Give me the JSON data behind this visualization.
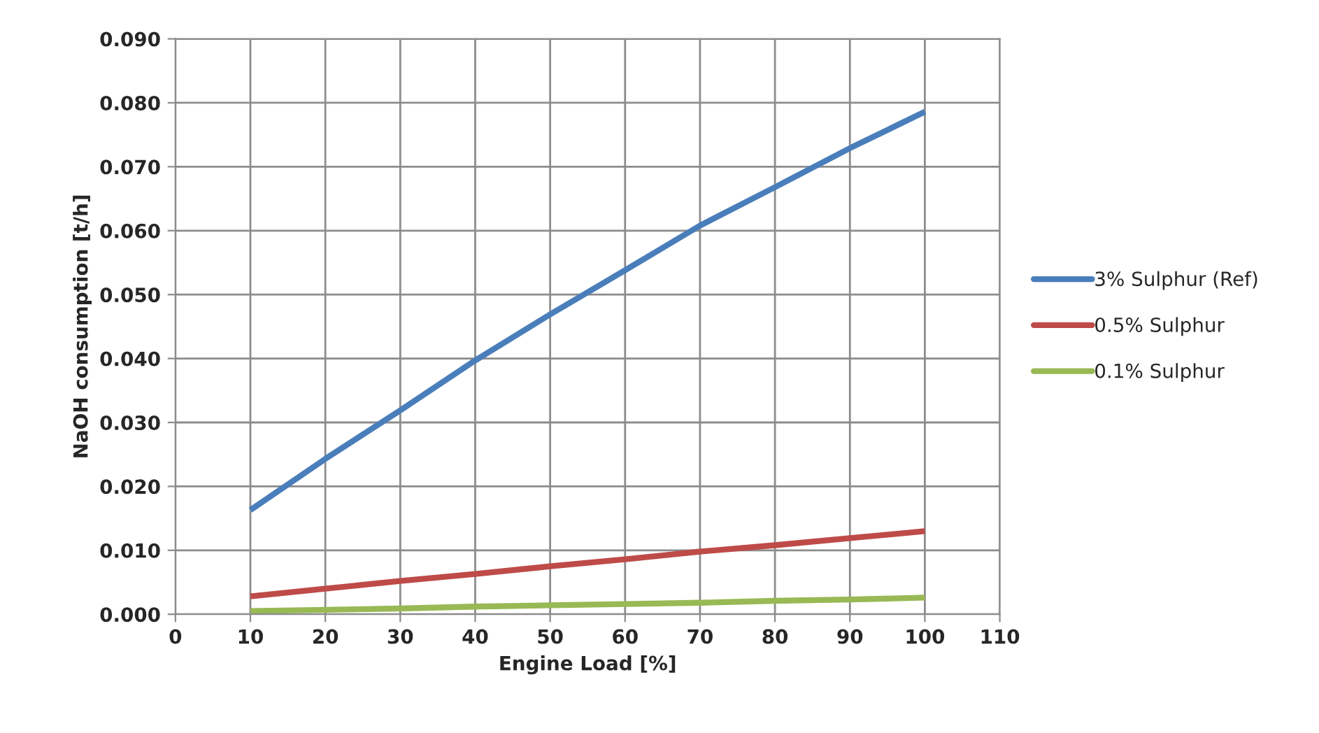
{
  "chart_data": {
    "type": "line",
    "xlabel": "Engine Load [%]",
    "ylabel": "NaOH consumption [t/h]",
    "x": [
      10,
      20,
      30,
      40,
      50,
      60,
      70,
      80,
      90,
      100
    ],
    "series": [
      {
        "name": "3% Sulphur (Ref)",
        "color": "#4a7ebb",
        "values": [
          0.0163,
          0.0243,
          0.0319,
          0.0397,
          0.0469,
          0.0538,
          0.0608,
          0.0668,
          0.0729,
          0.0786
        ]
      },
      {
        "name": "0.5% Sulphur",
        "color": "#be4b48",
        "values": [
          0.0028,
          0.004,
          0.0052,
          0.0063,
          0.0075,
          0.0086,
          0.0098,
          0.0108,
          0.0119,
          0.013
        ]
      },
      {
        "name": "0.1% Sulphur",
        "color": "#98b954",
        "values": [
          0.0005,
          0.0007,
          0.0009,
          0.0012,
          0.0014,
          0.0016,
          0.0018,
          0.0021,
          0.0023,
          0.0026
        ]
      }
    ],
    "xlim": [
      0,
      110
    ],
    "xticks": [
      0,
      10,
      20,
      30,
      40,
      50,
      60,
      70,
      80,
      90,
      100,
      110
    ],
    "ylim": [
      0,
      0.09
    ],
    "yticks": [
      {
        "value": 0,
        "label": "0.000"
      },
      {
        "value": 0.01,
        "label": "0.010"
      },
      {
        "value": 0.02,
        "label": "0.020"
      },
      {
        "value": 0.03,
        "label": "0.030"
      },
      {
        "value": 0.04,
        "label": "0.040"
      },
      {
        "value": 0.05,
        "label": "0.050"
      },
      {
        "value": 0.06,
        "label": "0.060"
      },
      {
        "value": 0.07,
        "label": "0.070"
      },
      {
        "value": 0.08,
        "label": "0.080"
      },
      {
        "value": 0.09,
        "label": "0.090"
      }
    ],
    "grid": true,
    "legend": "right",
    "marker": "none",
    "line_style": "solid"
  }
}
